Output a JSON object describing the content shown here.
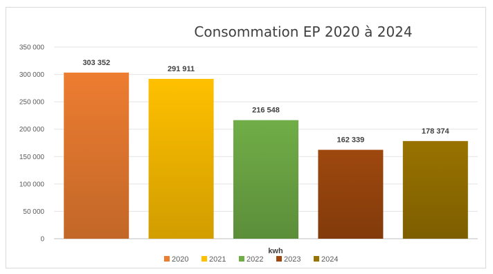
{
  "chart_data": {
    "type": "bar",
    "title": "Consommation EP 2020 à 2024",
    "xlabel": "kwh",
    "ylabel": "",
    "ylim": [
      0,
      350000
    ],
    "yticks": [
      0,
      50000,
      100000,
      150000,
      200000,
      250000,
      300000,
      350000
    ],
    "ytick_labels": [
      "0",
      "50 000",
      "100 000",
      "150 000",
      "200 000",
      "250 000",
      "300 000",
      "350 000"
    ],
    "categories": [
      "2020",
      "2021",
      "2022",
      "2023",
      "2024"
    ],
    "values": [
      303352,
      291911,
      216548,
      162339,
      178374
    ],
    "data_labels": [
      "303 352",
      "291 911",
      "216 548",
      "162 339",
      "178 374"
    ],
    "colors": [
      "#ed7d31",
      "#ffc000",
      "#70ad47",
      "#9e480e",
      "#997300"
    ],
    "grid": true,
    "legend_position": "bottom"
  }
}
